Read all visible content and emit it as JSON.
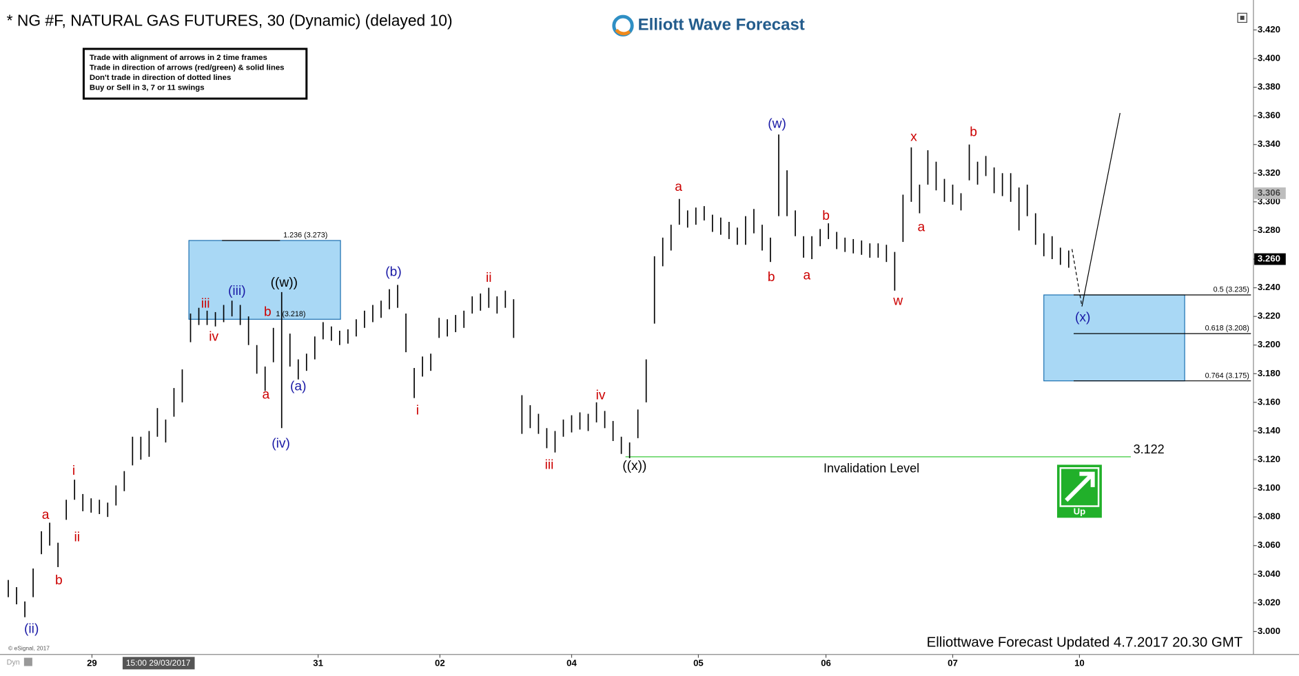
{
  "chart_data": {
    "type": "ohlc",
    "title": "* NG #F, NATURAL GAS FUTURES, 30 (Dynamic) (delayed 10)",
    "logo": "Elliott Wave Forecast",
    "rules": [
      "Trade with alignment of arrows in 2 time frames",
      "Trade in direction of arrows (red/green) & solid lines",
      "Don't trade in direction of dotted lines",
      "Buy or Sell in 3, 7 or 11 swings"
    ],
    "footer": "Elliottwave Forecast Updated 4.7.2017 20.30 GMT",
    "copyright": "© eSignal, 2017",
    "corner": "Dyn",
    "cursor_time": "15:00 29/03/2017",
    "color": "#000000",
    "xlim": [
      0,
      151.3
    ],
    "ylim": [
      2.984,
      3.438
    ],
    "xticks": [
      {
        "value": 11.1,
        "label": "29"
      },
      {
        "value": 38.4,
        "label": "31"
      },
      {
        "value": 53.1,
        "label": "02"
      },
      {
        "value": 69.0,
        "label": "04"
      },
      {
        "value": 84.3,
        "label": "05"
      },
      {
        "value": 99.7,
        "label": "06"
      },
      {
        "value": 115,
        "label": "07"
      },
      {
        "value": 130.3,
        "label": "10"
      }
    ],
    "yticks": [
      {
        "value": 3.0,
        "label": "3.000"
      },
      {
        "value": 3.02,
        "label": "3.020"
      },
      {
        "value": 3.04,
        "label": "3.040"
      },
      {
        "value": 3.06,
        "label": "3.060"
      },
      {
        "value": 3.08,
        "label": "3.080"
      },
      {
        "value": 3.1,
        "label": "3.100"
      },
      {
        "value": 3.12,
        "label": "3.120"
      },
      {
        "value": 3.14,
        "label": "3.140"
      },
      {
        "value": 3.16,
        "label": "3.160"
      },
      {
        "value": 3.18,
        "label": "3.180"
      },
      {
        "value": 3.2,
        "label": "3.200"
      },
      {
        "value": 3.22,
        "label": "3.220"
      },
      {
        "value": 3.24,
        "label": "3.240"
      },
      {
        "value": 3.26,
        "label": "3.260"
      },
      {
        "value": 3.28,
        "label": "3.280"
      },
      {
        "value": 3.3,
        "label": "3.300"
      },
      {
        "value": 3.32,
        "label": "3.320"
      },
      {
        "value": 3.34,
        "label": "3.340"
      },
      {
        "value": 3.36,
        "label": "3.360"
      },
      {
        "value": 3.38,
        "label": "3.380"
      },
      {
        "value": 3.4,
        "label": "3.400"
      },
      {
        "value": 3.42,
        "label": "3.420"
      }
    ],
    "low": [
      3.024,
      3.019,
      3.01,
      3.024,
      3.054,
      3.06,
      3.045,
      3.078,
      3.092,
      3.084,
      3.083,
      3.082,
      3.08,
      3.088,
      3.098,
      3.116,
      3.12,
      3.122,
      3.136,
      3.132,
      3.15,
      3.16,
      3.202,
      3.214,
      3.214,
      3.213,
      3.216,
      3.22,
      3.214,
      3.2,
      3.18,
      3.168,
      3.188,
      3.142,
      3.185,
      3.176,
      3.182,
      3.19,
      3.204,
      3.203,
      3.2,
      3.201,
      3.206,
      3.212,
      3.216,
      3.219,
      3.225,
      3.226,
      3.195,
      3.163,
      3.178,
      3.182,
      3.205,
      3.206,
      3.209,
      3.212,
      3.222,
      3.224,
      3.226,
      3.222,
      3.226,
      3.205,
      3.138,
      3.142,
      3.138,
      3.128,
      3.125,
      3.136,
      3.139,
      3.141,
      3.14,
      3.146,
      3.142,
      3.133,
      3.124,
      3.121,
      3.135,
      3.16,
      3.215,
      3.255,
      3.266,
      3.284,
      3.282,
      3.284,
      3.287,
      3.279,
      3.277,
      3.274,
      3.27,
      3.27,
      3.278,
      3.266,
      3.258,
      3.29,
      3.29,
      3.276,
      3.261,
      3.26,
      3.269,
      3.274,
      3.267,
      3.265,
      3.264,
      3.263,
      3.261,
      3.261,
      3.258,
      3.238,
      3.272,
      3.3,
      3.292,
      3.312,
      3.308,
      3.3,
      3.298,
      3.294,
      3.315,
      3.312,
      3.318,
      3.306,
      3.304,
      3.3,
      3.28,
      3.29,
      3.27,
      3.262,
      3.26,
      3.256,
      3.254
    ],
    "high": [
      3.036,
      3.031,
      3.021,
      3.044,
      3.07,
      3.076,
      3.062,
      3.092,
      3.106,
      3.096,
      3.093,
      3.092,
      3.09,
      3.102,
      3.112,
      3.136,
      3.136,
      3.14,
      3.156,
      3.148,
      3.17,
      3.183,
      3.222,
      3.226,
      3.224,
      3.223,
      3.228,
      3.231,
      3.228,
      3.22,
      3.2,
      3.185,
      3.212,
      3.237,
      3.208,
      3.19,
      3.194,
      3.206,
      3.216,
      3.213,
      3.21,
      3.211,
      3.218,
      3.224,
      3.228,
      3.231,
      3.239,
      3.242,
      3.222,
      3.184,
      3.192,
      3.194,
      3.219,
      3.218,
      3.221,
      3.224,
      3.234,
      3.236,
      3.24,
      3.234,
      3.238,
      3.232,
      3.165,
      3.158,
      3.152,
      3.142,
      3.14,
      3.148,
      3.151,
      3.153,
      3.152,
      3.16,
      3.154,
      3.147,
      3.136,
      3.132,
      3.155,
      3.19,
      3.262,
      3.275,
      3.284,
      3.302,
      3.294,
      3.296,
      3.297,
      3.291,
      3.289,
      3.286,
      3.282,
      3.29,
      3.295,
      3.284,
      3.275,
      3.347,
      3.322,
      3.294,
      3.276,
      3.276,
      3.281,
      3.285,
      3.279,
      3.275,
      3.274,
      3.273,
      3.271,
      3.271,
      3.27,
      3.265,
      3.305,
      3.338,
      3.312,
      3.336,
      3.328,
      3.316,
      3.312,
      3.306,
      3.34,
      3.328,
      3.332,
      3.324,
      3.32,
      3.32,
      3.31,
      3.312,
      3.292,
      3.278,
      3.276,
      3.268,
      3.266
    ],
    "price_tags": [
      {
        "value": 3.306,
        "label": "3.306",
        "color": "#bdbdbd"
      },
      {
        "value": 3.26,
        "label": "3.260",
        "color": "#000000"
      }
    ],
    "zones": [
      {
        "top": {
          "value": 3.273,
          "label": "1.236 (3.273)"
        },
        "bottom": {
          "value": 3.218,
          "label": "1 (3.218)"
        },
        "color": "#a9d8f5"
      },
      {
        "top": {
          "value": 3.235,
          "label": "0.5 (3.235)"
        },
        "mid": {
          "value": 3.208,
          "label": "0.618 (3.208)"
        },
        "bottom": {
          "value": 3.175,
          "label": "0.764 (3.175)"
        },
        "color": "#a9d8f5"
      }
    ],
    "invalidation": {
      "value": 3.122,
      "text": "Invalidation Level",
      "color": "#5ad35a"
    },
    "projection": {
      "x": [
        129.4,
        130.6,
        135.2
      ],
      "values": [
        3.267,
        3.227,
        3.362
      ]
    },
    "signal": {
      "text": "Up",
      "color": "#21b02a"
    },
    "wave_labels": [
      {
        "text": "(ii)",
        "color": "#1a1aa6"
      },
      {
        "text": "a",
        "color": "#cc0000"
      },
      {
        "text": "b",
        "color": "#cc0000"
      },
      {
        "text": "i",
        "color": "#cc0000"
      },
      {
        "text": "ii",
        "color": "#cc0000"
      },
      {
        "text": "iii",
        "color": "#cc0000"
      },
      {
        "text": "iv",
        "color": "#cc0000"
      },
      {
        "text": "(iii)",
        "color": "#1a1aa6"
      },
      {
        "text": "b",
        "color": "#cc0000"
      },
      {
        "text": "a",
        "color": "#cc0000"
      },
      {
        "text": "((w))",
        "color": "#000000"
      },
      {
        "text": "(iv)",
        "color": "#1a1aa6"
      },
      {
        "text": "(a)",
        "color": "#1a1aa6"
      },
      {
        "text": "(b)",
        "color": "#1a1aa6"
      },
      {
        "text": "i",
        "color": "#cc0000"
      },
      {
        "text": "ii",
        "color": "#cc0000"
      },
      {
        "text": "iii",
        "color": "#cc0000"
      },
      {
        "text": "iv",
        "color": "#cc0000"
      },
      {
        "text": "((x))",
        "color": "#000000"
      },
      {
        "text": "a",
        "color": "#cc0000"
      },
      {
        "text": "(w)",
        "color": "#1a1aa6"
      },
      {
        "text": "b",
        "color": "#cc0000"
      },
      {
        "text": "b",
        "color": "#cc0000"
      },
      {
        "text": "a",
        "color": "#cc0000"
      },
      {
        "text": "w",
        "color": "#cc0000"
      },
      {
        "text": "x",
        "color": "#cc0000"
      },
      {
        "text": "a",
        "color": "#cc0000"
      },
      {
        "text": "b",
        "color": "#cc0000"
      },
      {
        "text": "(x)",
        "color": "#1a1aa6"
      }
    ]
  }
}
